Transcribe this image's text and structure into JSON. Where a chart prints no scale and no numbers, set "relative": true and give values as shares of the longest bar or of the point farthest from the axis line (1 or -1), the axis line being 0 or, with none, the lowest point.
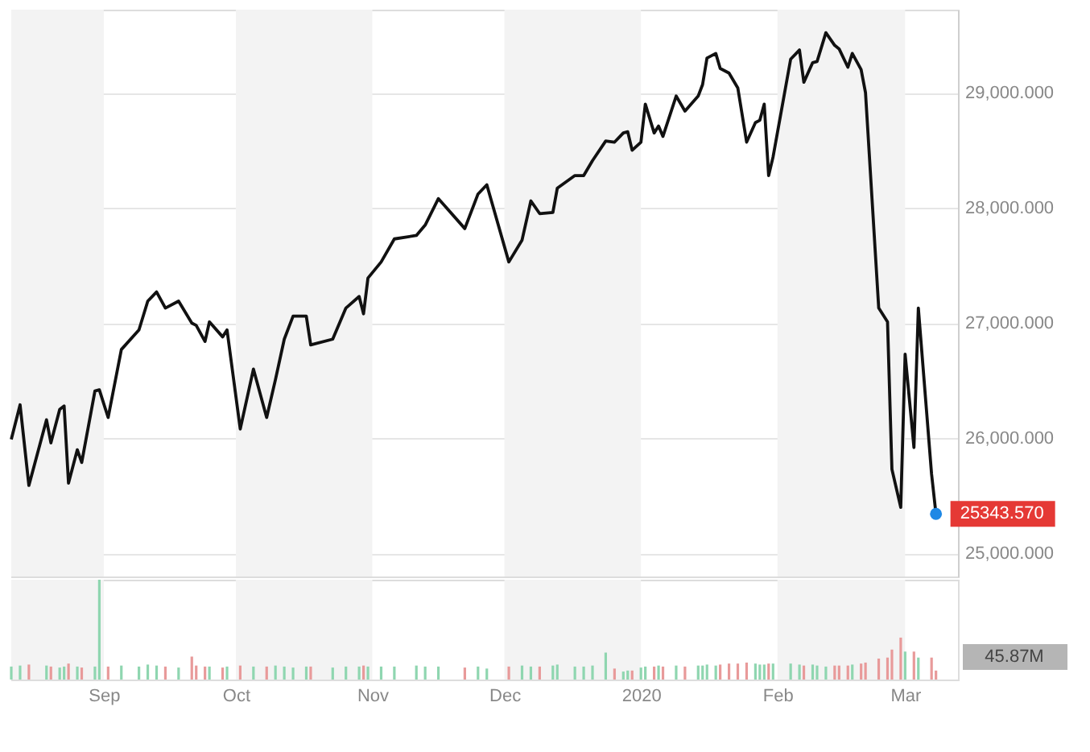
{
  "chart_data": [
    {
      "type": "line",
      "xlim": [
        "2019-08-11",
        "2020-03-13"
      ],
      "tick_labels": "y",
      "ylim": [
        24800,
        29720
      ],
      "yticks": [
        {
          "value": 25000,
          "label": "25,000.000"
        },
        {
          "value": 26000,
          "label": "26,000.000"
        },
        {
          "value": 27000,
          "label": "27,000.000"
        },
        {
          "value": 28000,
          "label": "28,000.000"
        },
        {
          "value": 29000,
          "label": "29,000.000"
        }
      ],
      "grid": "y",
      "bands": [
        {
          "axis": "x",
          "from": "2019-08-11",
          "to": "2019-09-01",
          "color": "#f3f3f3"
        },
        {
          "axis": "x",
          "from": "2019-10-01",
          "to": "2019-11-01",
          "color": "#f3f3f3"
        },
        {
          "axis": "x",
          "from": "2019-12-01",
          "to": "2020-01-01",
          "color": "#f3f3f3"
        },
        {
          "axis": "x",
          "from": "2020-02-01",
          "to": "2020-03-01",
          "color": "#f3f3f3"
        }
      ],
      "series": [
        {
          "color": "#111111",
          "x": [
            "2019-08-11",
            "2019-08-13",
            "2019-08-15",
            "2019-08-19",
            "2019-08-20",
            "2019-08-22",
            "2019-08-23",
            "2019-08-24",
            "2019-08-26",
            "2019-08-27",
            "2019-08-30",
            "2019-08-31",
            "2019-09-02",
            "2019-09-05",
            "2019-09-09",
            "2019-09-11",
            "2019-09-13",
            "2019-09-15",
            "2019-09-18",
            "2019-09-21",
            "2019-09-22",
            "2019-09-24",
            "2019-09-25",
            "2019-09-28",
            "2019-09-29",
            "2019-10-02",
            "2019-10-05",
            "2019-10-08",
            "2019-10-10",
            "2019-10-12",
            "2019-10-14",
            "2019-10-17",
            "2019-10-18",
            "2019-10-23",
            "2019-10-26",
            "2019-10-29",
            "2019-10-30",
            "2019-10-31",
            "2019-11-03",
            "2019-11-06",
            "2019-11-11",
            "2019-11-13",
            "2019-11-16",
            "2019-11-22",
            "2019-11-25",
            "2019-11-27",
            "2019-12-02",
            "2019-12-05",
            "2019-12-07",
            "2019-12-09",
            "2019-12-12",
            "2019-12-13",
            "2019-12-17",
            "2019-12-19",
            "2019-12-21",
            "2019-12-24",
            "2019-12-26",
            "2019-12-28",
            "2019-12-29",
            "2019-12-30",
            "2020-01-01",
            "2020-01-02",
            "2020-01-04",
            "2020-01-05",
            "2020-01-06",
            "2020-01-09",
            "2020-01-11",
            "2020-01-14",
            "2020-01-15",
            "2020-01-16",
            "2020-01-18",
            "2020-01-19",
            "2020-01-21",
            "2020-01-23",
            "2020-01-25",
            "2020-01-27",
            "2020-01-28",
            "2020-01-29",
            "2020-01-30",
            "2020-01-31",
            "2020-02-04",
            "2020-02-06",
            "2020-02-07",
            "2020-02-09",
            "2020-02-10",
            "2020-02-12",
            "2020-02-14",
            "2020-02-15",
            "2020-02-17",
            "2020-02-18",
            "2020-02-20",
            "2020-02-21",
            "2020-02-24",
            "2020-02-26",
            "2020-02-27",
            "2020-02-29",
            "2020-03-01",
            "2020-03-03",
            "2020-03-04",
            "2020-03-07",
            "2020-03-08"
          ],
          "values": [
            25990,
            26290,
            25590,
            26160,
            25960,
            26250,
            26280,
            25610,
            25900,
            25790,
            26410,
            26420,
            26180,
            26770,
            26940,
            27190,
            27270,
            27130,
            27190,
            27000,
            26980,
            26840,
            27010,
            26880,
            26940,
            26080,
            26600,
            26180,
            26510,
            26860,
            27060,
            27060,
            26810,
            26860,
            27130,
            27230,
            27080,
            27390,
            27530,
            27730,
            27760,
            27850,
            28080,
            27820,
            28120,
            28200,
            27530,
            27720,
            28060,
            27950,
            27960,
            28170,
            28280,
            28280,
            28410,
            28580,
            28570,
            28650,
            28660,
            28500,
            28570,
            28900,
            28650,
            28710,
            28620,
            28970,
            28840,
            28970,
            29070,
            29300,
            29340,
            29210,
            29170,
            29040,
            28570,
            28740,
            28760,
            28900,
            28280,
            28440,
            29290,
            29370,
            29090,
            29260,
            29270,
            29520,
            29410,
            29380,
            29220,
            29340,
            29200,
            29000,
            27130,
            27010,
            25730,
            25400,
            26730,
            25920,
            27130,
            25690,
            25343.57
          ]
        },
        {
          "type": "scatter",
          "color": "#1e88e5",
          "marker": "circle",
          "x": [
            "2020-03-08"
          ],
          "values": [
            25343.57
          ],
          "value_labels": [
            "25343.570"
          ]
        }
      ]
    },
    {
      "type": "bar",
      "relative": true,
      "xlim": [
        "2019-08-11",
        "2020-03-13"
      ],
      "xticks": [
        {
          "value": "2019-09-01",
          "label": "Sep"
        },
        {
          "value": "2019-10-01",
          "label": "Oct"
        },
        {
          "value": "2019-11-01",
          "label": "Nov"
        },
        {
          "value": "2019-12-01",
          "label": "Dec"
        },
        {
          "value": "2020-01-01",
          "label": "2020"
        },
        {
          "value": "2020-02-01",
          "label": "Feb"
        },
        {
          "value": "2020-03-01",
          "label": "Mar"
        }
      ],
      "tick_labels": "x",
      "bands": [
        {
          "axis": "x",
          "from": "2019-08-11",
          "to": "2019-09-01",
          "color": "#f3f3f3"
        },
        {
          "axis": "x",
          "from": "2019-10-01",
          "to": "2019-11-01",
          "color": "#f3f3f3"
        },
        {
          "axis": "x",
          "from": "2019-12-01",
          "to": "2020-01-01",
          "color": "#f3f3f3"
        },
        {
          "axis": "x",
          "from": "2020-02-01",
          "to": "2020-03-01",
          "color": "#f3f3f3"
        }
      ],
      "annotations": [
        "45.87M"
      ],
      "x": [
        "2019-08-11",
        "2019-08-13",
        "2019-08-15",
        "2019-08-19",
        "2019-08-20",
        "2019-08-22",
        "2019-08-23",
        "2019-08-24",
        "2019-08-26",
        "2019-08-27",
        "2019-08-30",
        "2019-08-31",
        "2019-09-02",
        "2019-09-05",
        "2019-09-09",
        "2019-09-11",
        "2019-09-13",
        "2019-09-15",
        "2019-09-18",
        "2019-09-21",
        "2019-09-22",
        "2019-09-24",
        "2019-09-25",
        "2019-09-28",
        "2019-09-29",
        "2019-10-02",
        "2019-10-05",
        "2019-10-08",
        "2019-10-10",
        "2019-10-12",
        "2019-10-14",
        "2019-10-17",
        "2019-10-18",
        "2019-10-23",
        "2019-10-26",
        "2019-10-29",
        "2019-10-30",
        "2019-10-31",
        "2019-11-03",
        "2019-11-06",
        "2019-11-11",
        "2019-11-13",
        "2019-11-16",
        "2019-11-22",
        "2019-11-25",
        "2019-11-27",
        "2019-12-02",
        "2019-12-05",
        "2019-12-07",
        "2019-12-09",
        "2019-12-12",
        "2019-12-13",
        "2019-12-17",
        "2019-12-19",
        "2019-12-21",
        "2019-12-24",
        "2019-12-26",
        "2019-12-28",
        "2019-12-29",
        "2019-12-30",
        "2020-01-01",
        "2020-01-02",
        "2020-01-04",
        "2020-01-05",
        "2020-01-06",
        "2020-01-09",
        "2020-01-11",
        "2020-01-14",
        "2020-01-15",
        "2020-01-16",
        "2020-01-18",
        "2020-01-19",
        "2020-01-21",
        "2020-01-23",
        "2020-01-25",
        "2020-01-27",
        "2020-01-28",
        "2020-01-29",
        "2020-01-30",
        "2020-01-31",
        "2020-02-04",
        "2020-02-06",
        "2020-02-07",
        "2020-02-09",
        "2020-02-10",
        "2020-02-12",
        "2020-02-14",
        "2020-02-15",
        "2020-02-17",
        "2020-02-18",
        "2020-02-20",
        "2020-02-21",
        "2020-02-24",
        "2020-02-26",
        "2020-02-27",
        "2020-02-29",
        "2020-03-01",
        "2020-03-03",
        "2020-03-04",
        "2020-03-07",
        "2020-03-08"
      ],
      "values": [
        0.13,
        0.14,
        0.15,
        0.14,
        0.13,
        0.12,
        0.13,
        0.16,
        0.13,
        0.12,
        0.13,
        1,
        0.13,
        0.14,
        0.13,
        0.15,
        0.14,
        0.13,
        0.12,
        0.23,
        0.14,
        0.13,
        0.13,
        0.12,
        0.13,
        0.14,
        0.13,
        0.13,
        0.14,
        0.13,
        0.12,
        0.13,
        0.13,
        0.12,
        0.13,
        0.13,
        0.14,
        0.13,
        0.13,
        0.13,
        0.14,
        0.13,
        0.13,
        0.12,
        0.13,
        0.11,
        0.13,
        0.14,
        0.13,
        0.13,
        0.14,
        0.15,
        0.13,
        0.13,
        0.14,
        0.27,
        0.11,
        0.08,
        0.09,
        0.09,
        0.12,
        0.13,
        0.13,
        0.14,
        0.13,
        0.14,
        0.13,
        0.14,
        0.14,
        0.15,
        0.14,
        0.15,
        0.16,
        0.16,
        0.17,
        0.16,
        0.15,
        0.15,
        0.16,
        0.16,
        0.16,
        0.15,
        0.14,
        0.15,
        0.14,
        0.13,
        0.14,
        0.14,
        0.14,
        0.15,
        0.16,
        0.17,
        0.21,
        0.22,
        0.3,
        0.42,
        0.28,
        0.28,
        0.22,
        0.22,
        0.09
      ],
      "colors": [
        "#8fd6b0",
        "#8fd6b0",
        "#e89a9a",
        "#8fd6b0",
        "#e89a9a",
        "#8fd6b0",
        "#8fd6b0",
        "#e89a9a",
        "#8fd6b0",
        "#e89a9a",
        "#8fd6b0",
        "#8fd6b0",
        "#e89a9a",
        "#8fd6b0",
        "#8fd6b0",
        "#8fd6b0",
        "#8fd6b0",
        "#e89a9a",
        "#8fd6b0",
        "#e89a9a",
        "#e89a9a",
        "#e89a9a",
        "#8fd6b0",
        "#e89a9a",
        "#8fd6b0",
        "#e89a9a",
        "#8fd6b0",
        "#e89a9a",
        "#8fd6b0",
        "#8fd6b0",
        "#8fd6b0",
        "#8fd6b0",
        "#e89a9a",
        "#8fd6b0",
        "#8fd6b0",
        "#8fd6b0",
        "#e89a9a",
        "#8fd6b0",
        "#8fd6b0",
        "#8fd6b0",
        "#8fd6b0",
        "#8fd6b0",
        "#8fd6b0",
        "#e89a9a",
        "#8fd6b0",
        "#8fd6b0",
        "#e89a9a",
        "#8fd6b0",
        "#8fd6b0",
        "#e89a9a",
        "#8fd6b0",
        "#8fd6b0",
        "#8fd6b0",
        "#8fd6b0",
        "#8fd6b0",
        "#8fd6b0",
        "#e89a9a",
        "#8fd6b0",
        "#8fd6b0",
        "#e89a9a",
        "#8fd6b0",
        "#8fd6b0",
        "#e89a9a",
        "#8fd6b0",
        "#e89a9a",
        "#8fd6b0",
        "#e89a9a",
        "#8fd6b0",
        "#8fd6b0",
        "#8fd6b0",
        "#8fd6b0",
        "#e89a9a",
        "#e89a9a",
        "#e89a9a",
        "#e89a9a",
        "#8fd6b0",
        "#8fd6b0",
        "#8fd6b0",
        "#e89a9a",
        "#8fd6b0",
        "#8fd6b0",
        "#8fd6b0",
        "#e89a9a",
        "#8fd6b0",
        "#8fd6b0",
        "#8fd6b0",
        "#e89a9a",
        "#e89a9a",
        "#e89a9a",
        "#8fd6b0",
        "#e89a9a",
        "#e89a9a",
        "#e89a9a",
        "#e89a9a",
        "#e89a9a",
        "#e89a9a",
        "#8fd6b0",
        "#e89a9a",
        "#8fd6b0",
        "#e89a9a",
        "#e89a9a"
      ]
    }
  ]
}
